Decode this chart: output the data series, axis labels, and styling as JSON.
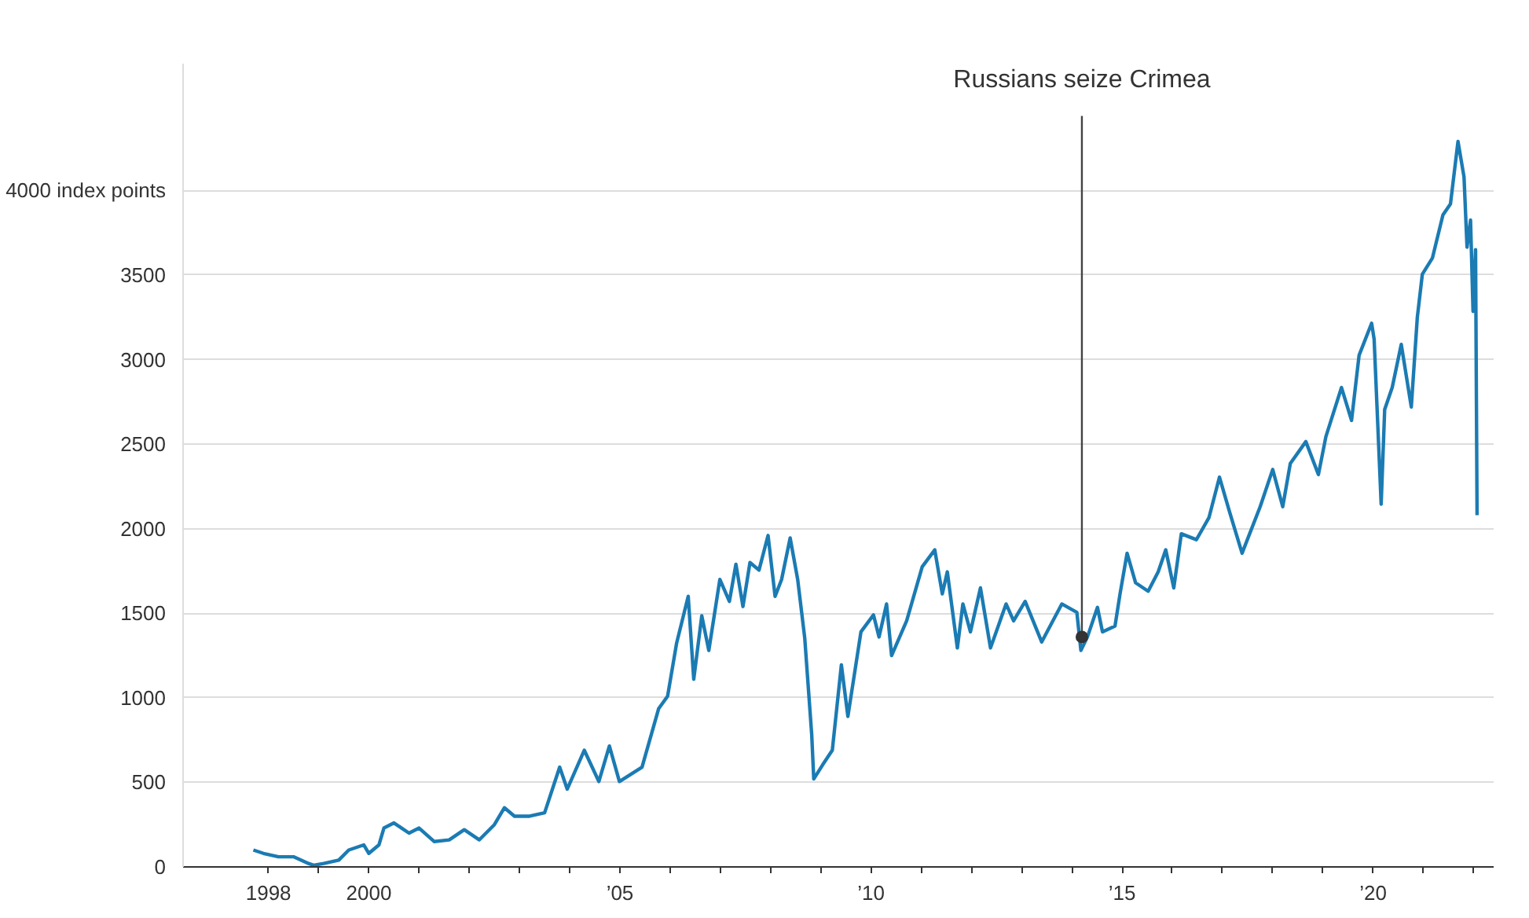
{
  "chart_data": {
    "type": "line",
    "color": "#1b7bb3",
    "grid": "y",
    "xlim": [
      1996.3,
      2022.4
    ],
    "ylim": [
      0,
      4750
    ],
    "xticks": [
      {
        "value": 1998,
        "label": "1998"
      },
      {
        "value": 1999,
        "label": null
      },
      {
        "value": 2000,
        "label": "2000"
      },
      {
        "value": 2001,
        "label": null
      },
      {
        "value": 2002,
        "label": null
      },
      {
        "value": 2003,
        "label": null
      },
      {
        "value": 2004,
        "label": null
      },
      {
        "value": 2005,
        "label": "’05"
      },
      {
        "value": 2006,
        "label": null
      },
      {
        "value": 2007,
        "label": null
      },
      {
        "value": 2008,
        "label": null
      },
      {
        "value": 2009,
        "label": null
      },
      {
        "value": 2010,
        "label": "’10"
      },
      {
        "value": 2011,
        "label": null
      },
      {
        "value": 2012,
        "label": null
      },
      {
        "value": 2013,
        "label": null
      },
      {
        "value": 2014,
        "label": null
      },
      {
        "value": 2015,
        "label": "’15"
      },
      {
        "value": 2016,
        "label": null
      },
      {
        "value": 2017,
        "label": null
      },
      {
        "value": 2018,
        "label": null
      },
      {
        "value": 2019,
        "label": null
      },
      {
        "value": 2020,
        "label": "’20"
      },
      {
        "value": 2021,
        "label": null
      },
      {
        "value": 2022,
        "label": null
      }
    ],
    "yticks": [
      0,
      500,
      1000,
      1500,
      2000,
      2500,
      3000,
      3500,
      {
        "value": 4000,
        "label": "4000 index points"
      }
    ],
    "annotations": [
      {
        "text": "Russians seize Crimea",
        "x": 2014.2,
        "y": 1360
      }
    ],
    "x": [
      1997.7,
      1997.9,
      1998.2,
      1998.5,
      1998.8,
      1998.9,
      1999.1,
      1999.4,
      1999.6,
      1999.9,
      2000.0,
      2000.2,
      2000.3,
      2000.5,
      2000.8,
      2001.0,
      2001.3,
      2001.6,
      2001.9,
      2002.2,
      2002.5,
      2002.7,
      2002.9,
      2003.2,
      2003.5,
      2003.8,
      2003.95,
      2004.29,
      2004.58,
      2004.79,
      2004.99,
      2005.44,
      2005.77,
      2005.95,
      2006.13,
      2006.36,
      2006.47,
      2006.63,
      2006.77,
      2006.99,
      2007.18,
      2007.31,
      2007.45,
      2007.59,
      2007.77,
      2007.95,
      2008.09,
      2008.22,
      2008.39,
      2008.54,
      2008.68,
      2008.82,
      2008.86,
      2009.04,
      2009.23,
      2009.41,
      2009.54,
      2009.8,
      2010.05,
      2010.16,
      2010.31,
      2010.41,
      2010.71,
      2011.02,
      2011.27,
      2011.42,
      2011.52,
      2011.72,
      2011.83,
      2011.98,
      2012.18,
      2012.38,
      2012.69,
      2012.84,
      2013.07,
      2013.4,
      2013.8,
      2014.1,
      2014.18,
      2014.31,
      2014.51,
      2014.61,
      2014.86,
      2014.96,
      2015.1,
      2015.27,
      2015.52,
      2015.72,
      2015.87,
      2016.03,
      2016.18,
      2016.48,
      2016.73,
      2016.94,
      2017.14,
      2017.39,
      2017.75,
      2018.0,
      2018.2,
      2018.35,
      2018.66,
      2018.91,
      2019.06,
      2019.37,
      2019.57,
      2019.72,
      2019.97,
      2020.02,
      2020.16,
      2020.23,
      2020.38,
      2020.56,
      2020.76,
      2020.88,
      2020.98,
      2021.18,
      2021.39,
      2021.54,
      2021.69,
      2021.81,
      2021.87,
      2021.94,
      2021.99,
      2022.04,
      2022.07
    ],
    "values": [
      100,
      80,
      60,
      60,
      20,
      10,
      20,
      40,
      100,
      130,
      80,
      130,
      230,
      260,
      200,
      230,
      150,
      160,
      220,
      160,
      250,
      350,
      300,
      300,
      320,
      590,
      460,
      690,
      505,
      715,
      505,
      590,
      935,
      1010,
      1325,
      1600,
      1110,
      1485,
      1280,
      1700,
      1570,
      1790,
      1540,
      1800,
      1755,
      1960,
      1600,
      1700,
      1945,
      1700,
      1355,
      780,
      520,
      605,
      690,
      1195,
      890,
      1390,
      1490,
      1360,
      1555,
      1250,
      1455,
      1775,
      1875,
      1615,
      1745,
      1295,
      1555,
      1390,
      1650,
      1295,
      1555,
      1455,
      1570,
      1330,
      1555,
      1505,
      1280,
      1360,
      1535,
      1390,
      1425,
      1615,
      1855,
      1680,
      1630,
      1745,
      1875,
      1650,
      1970,
      1935,
      2065,
      2305,
      2100,
      1855,
      2130,
      2350,
      2130,
      2385,
      2515,
      2320,
      2545,
      2835,
      2640,
      3025,
      3215,
      3120,
      2145,
      2705,
      2835,
      3090,
      2720,
      3250,
      3505,
      3600,
      3855,
      3920,
      4290,
      4080,
      3665,
      3825,
      3285,
      3650,
      2080
    ]
  }
}
